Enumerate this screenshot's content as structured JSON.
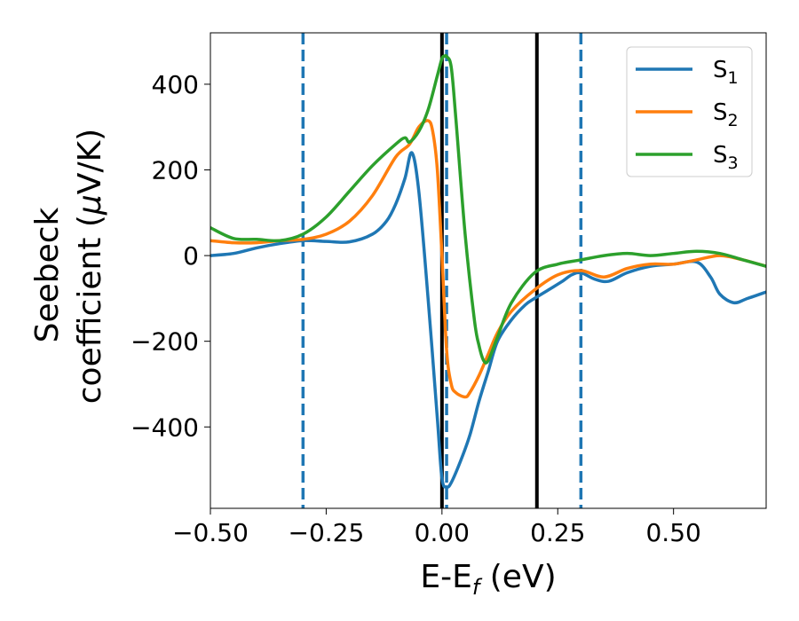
{
  "chart_data": {
    "type": "line",
    "xlabel": "E-E",
    "xlabel_subscript": "f",
    "xlabel_unit": " (eV)",
    "ylabel_line1": "Seebeck",
    "ylabel_line2_prefix": "coefficient  (",
    "ylabel_mu": "μ",
    "ylabel_line2_suffix": "V/K)",
    "xlim": [
      -0.5,
      0.7
    ],
    "ylim": [
      -590,
      520
    ],
    "xticks": [
      -0.5,
      -0.25,
      0.0,
      0.25,
      0.5
    ],
    "xtick_labels": [
      "−0.50",
      "−0.25",
      "0.00",
      "0.25",
      "0.50"
    ],
    "yticks": [
      -400,
      -200,
      0,
      200,
      400
    ],
    "ytick_labels": [
      "−400",
      "−200",
      "0",
      "200",
      "400"
    ],
    "grid": false,
    "legend_position": "top-right",
    "vertical_lines": [
      {
        "x": -0.3,
        "style": "dashed",
        "color": "#1f77b4"
      },
      {
        "x": 0.01,
        "style": "dashed",
        "color": "#1f77b4"
      },
      {
        "x": 0.3,
        "style": "dashed",
        "color": "#1f77b4"
      },
      {
        "x": 0.0,
        "style": "solid",
        "color": "#000000"
      },
      {
        "x": 0.205,
        "style": "solid",
        "color": "#000000"
      }
    ],
    "series": [
      {
        "name": "S",
        "subscript": "1",
        "color": "#1f77b4",
        "x": [
          -0.5,
          -0.45,
          -0.4,
          -0.35,
          -0.3,
          -0.25,
          -0.2,
          -0.15,
          -0.12,
          -0.1,
          -0.08,
          -0.065,
          -0.05,
          -0.03,
          -0.01,
          0.0,
          0.01,
          0.02,
          0.04,
          0.06,
          0.08,
          0.1,
          0.12,
          0.15,
          0.18,
          0.2,
          0.23,
          0.26,
          0.28,
          0.3,
          0.33,
          0.36,
          0.4,
          0.45,
          0.5,
          0.55,
          0.58,
          0.6,
          0.63,
          0.66,
          0.7
        ],
        "y": [
          0,
          5,
          18,
          28,
          35,
          33,
          32,
          50,
          80,
          120,
          180,
          240,
          150,
          -100,
          -380,
          -520,
          -540,
          -530,
          -480,
          -420,
          -340,
          -270,
          -200,
          -150,
          -115,
          -100,
          -80,
          -60,
          -45,
          -40,
          -55,
          -60,
          -40,
          -25,
          -20,
          -15,
          -50,
          -90,
          -110,
          -100,
          -85
        ]
      },
      {
        "name": "S",
        "subscript": "2",
        "color": "#ff7f0e",
        "x": [
          -0.5,
          -0.45,
          -0.4,
          -0.35,
          -0.3,
          -0.25,
          -0.2,
          -0.15,
          -0.1,
          -0.07,
          -0.05,
          -0.03,
          -0.02,
          -0.01,
          0.0,
          0.01,
          0.02,
          0.03,
          0.05,
          0.06,
          0.08,
          0.1,
          0.12,
          0.15,
          0.2,
          0.25,
          0.3,
          0.35,
          0.4,
          0.45,
          0.5,
          0.55,
          0.6,
          0.65,
          0.7
        ],
        "y": [
          35,
          30,
          30,
          35,
          38,
          50,
          80,
          140,
          230,
          260,
          300,
          315,
          290,
          200,
          0,
          -220,
          -300,
          -320,
          -330,
          -320,
          -280,
          -230,
          -180,
          -130,
          -80,
          -45,
          -35,
          -50,
          -30,
          -20,
          -20,
          -10,
          0,
          -10,
          -25
        ]
      },
      {
        "name": "S",
        "subscript": "3",
        "color": "#2ca02c",
        "x": [
          -0.5,
          -0.45,
          -0.4,
          -0.35,
          -0.3,
          -0.25,
          -0.2,
          -0.15,
          -0.1,
          -0.08,
          -0.07,
          -0.05,
          -0.03,
          -0.01,
          0.0,
          0.005,
          0.01,
          0.02,
          0.03,
          0.05,
          0.07,
          0.08,
          0.09,
          0.1,
          0.12,
          0.15,
          0.2,
          0.25,
          0.3,
          0.35,
          0.4,
          0.45,
          0.5,
          0.55,
          0.6,
          0.65,
          0.7
        ],
        "y": [
          65,
          40,
          38,
          35,
          50,
          90,
          150,
          210,
          260,
          275,
          265,
          290,
          340,
          420,
          460,
          465,
          465,
          440,
          320,
          50,
          -150,
          -210,
          -245,
          -245,
          -190,
          -110,
          -40,
          -20,
          -10,
          0,
          5,
          0,
          5,
          10,
          5,
          -10,
          -25
        ]
      }
    ]
  }
}
